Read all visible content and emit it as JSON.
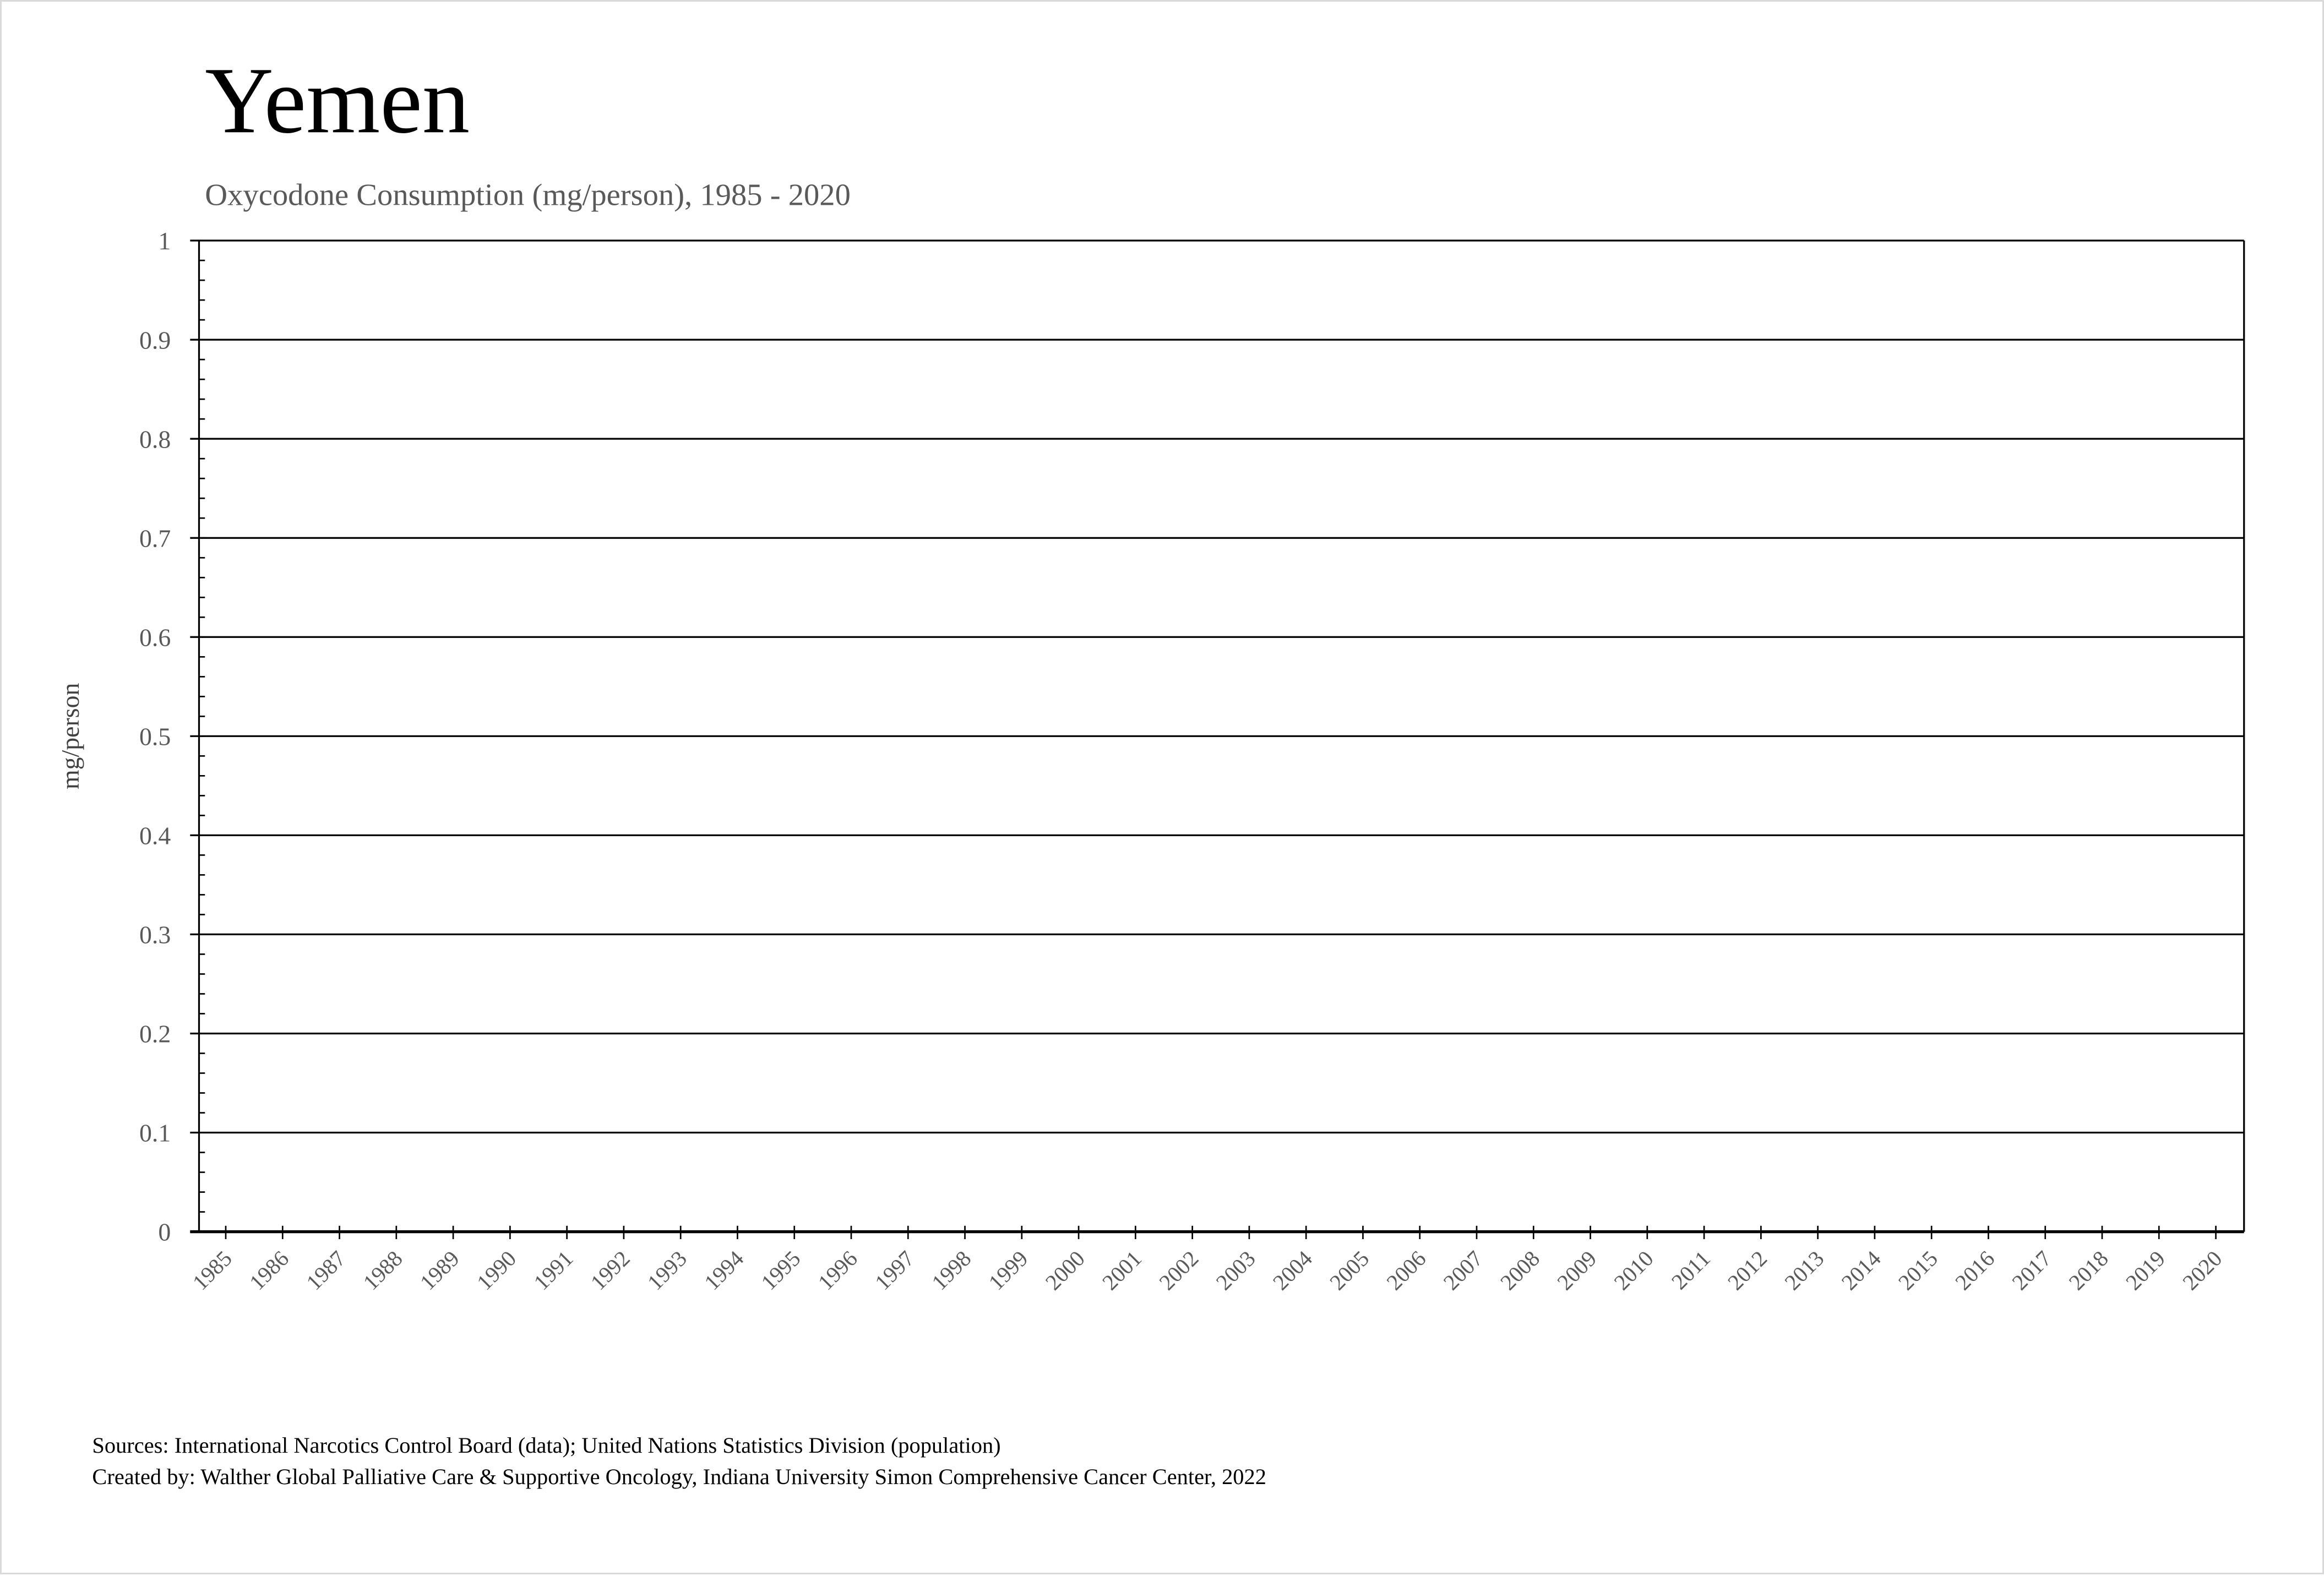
{
  "title": "Yemen",
  "subtitle": "Oxycodone Consumption (mg/person), 1985 - 2020",
  "footer": {
    "sources": "Sources: International Narcotics Control Board (data); United Nations Statistics Division (population)",
    "created_by": "Created by: Walther Global Palliative Care & Supportive Oncology, Indiana University Simon Comprehensive Cancer Center, 2022"
  },
  "chart_data": {
    "type": "line",
    "title": "Yemen",
    "subtitle": "Oxycodone Consumption (mg/person), 1985 - 2020",
    "xlabel": "",
    "ylabel": "mg/person",
    "ylim": [
      0,
      1
    ],
    "y_ticks": [
      "0",
      "0.1",
      "0.2",
      "0.3",
      "0.4",
      "0.5",
      "0.6",
      "0.7",
      "0.8",
      "0.9",
      "1"
    ],
    "categories": [
      "1985",
      "1986",
      "1987",
      "1988",
      "1989",
      "1990",
      "1991",
      "1992",
      "1993",
      "1994",
      "1995",
      "1996",
      "1997",
      "1998",
      "1999",
      "2000",
      "2001",
      "2002",
      "2003",
      "2004",
      "2005",
      "2006",
      "2007",
      "2008",
      "2009",
      "2010",
      "2011",
      "2012",
      "2013",
      "2014",
      "2015",
      "2016",
      "2017",
      "2018",
      "2019",
      "2020"
    ],
    "series": [],
    "grid": "horizontal",
    "colors": {
      "axis": "#000000",
      "tick_label": "#595959",
      "title": "#000000",
      "subtitle": "#595959"
    }
  }
}
